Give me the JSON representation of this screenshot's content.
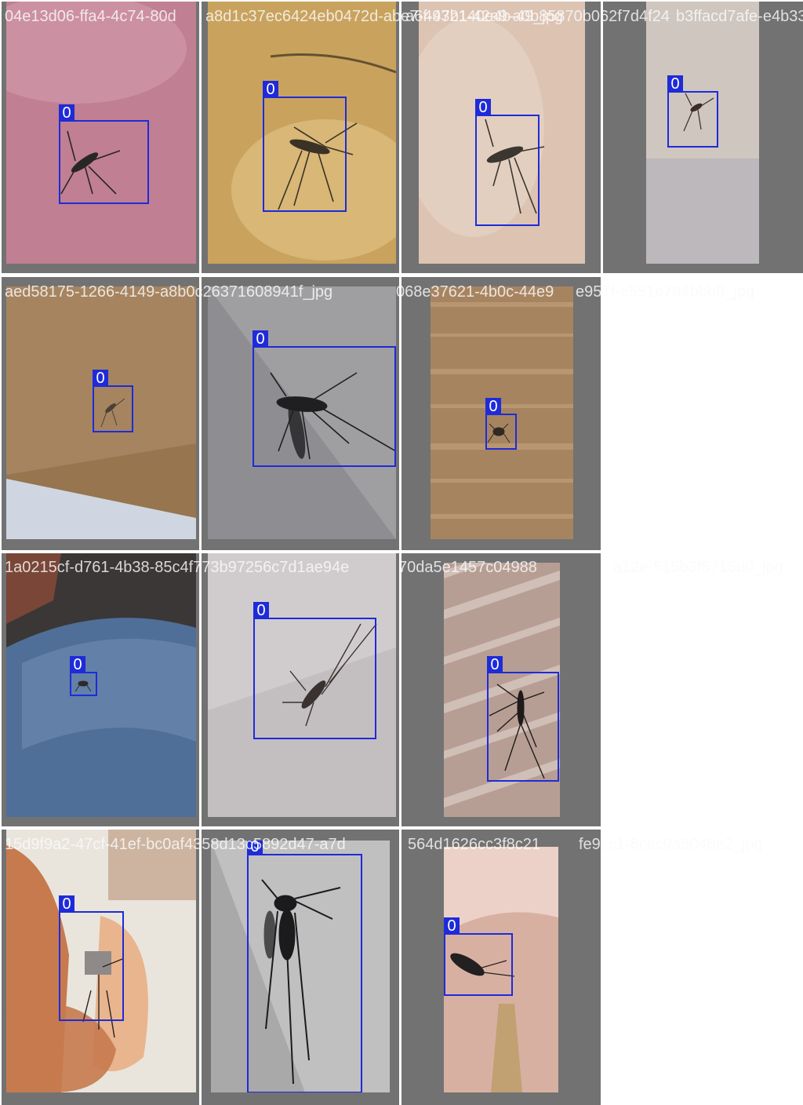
{
  "tiles": [
    {
      "filename": "04e13d06-ffa4-4c74-80d",
      "label": "0",
      "bg": "#c07f93",
      "bg2": "#d8a2b3",
      "bug": "#2a2628"
    },
    {
      "filename": "a8d1c37ec6424eb0472d-abe7-4932140e4b-49_jpg",
      "label": "0",
      "bg": "#c9a35e",
      "bg2": "#e2c589",
      "bug": "#3a3224"
    },
    {
      "filename": "a6f-47b1-42a9-a0b85870b062f7d4f24",
      "label": "0",
      "bg": "#dcc3b2",
      "bg2": "#e9d8cb",
      "bug": "#3b3630"
    },
    {
      "filename": "b3ffacd7afe-e4b33",
      "label": "0",
      "bg": "#cfc6bf",
      "bg2": "#b9b6bb",
      "bug": "#3c2e26"
    },
    {
      "filename": "aed58175-1266-4149-a8b0c26371608941f_jpg",
      "label": "0",
      "bg": "#96754f",
      "bg2": "#b49470",
      "bug": "#4a4038"
    },
    {
      "filename": "068e37621-4b0c-44e9",
      "label": "0",
      "bg": "#8e8e92",
      "bg2": "#b3b3b6",
      "bug": "#1f1f22"
    },
    {
      "filename": "e957f-e551e794bbb8_jpg",
      "label": "0",
      "bg": "#a78460",
      "bg2": "#c8a883",
      "bug": "#2f2a22"
    },
    {
      "filename": "1a0215cf-d761-4b38-85c4f773b97256c7d1ae94e",
      "label": "0",
      "bg": "#4f6f98",
      "bg2": "#7592b8",
      "bug": "#2d2a28"
    },
    {
      "filename": "70da5e1457c04988",
      "label": "0",
      "bg": "#c3bfc0",
      "bg2": "#d9d6d7",
      "bug": "#3a3230"
    },
    {
      "filename": "a12e-515b3f5715d0_jpg",
      "label": "0",
      "bg": "#b79e94",
      "bg2": "#dbcdc6",
      "bug": "#1f1b1a"
    },
    {
      "filename": "15d9f9a2-47cf-41ef-bc0af4358d13c5892d47-a7d",
      "label": "0",
      "bg": "#c77a4e",
      "bg2": "#e9b58e",
      "bug": "#2b2220"
    },
    {
      "filename": "564d1626cc3f8c21",
      "label": "0",
      "bg": "#a9a9a9",
      "bg2": "#d0d0d0",
      "bug": "#1b1b1d"
    },
    {
      "filename": "fe9cc1-8cec9a5048e2_jpg",
      "label": "0",
      "bg": "#d8b0a2",
      "bg2": "#ecd1c8",
      "bug": "#222020"
    }
  ]
}
